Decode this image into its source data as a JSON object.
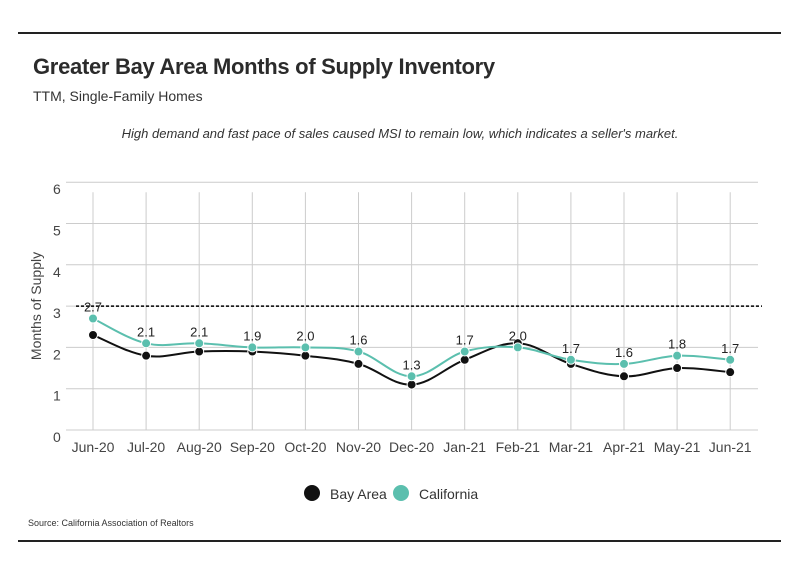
{
  "header": {
    "title": "Greater Bay Area Months of Supply Inventory",
    "subtitle": "TTM, Single-Family Homes"
  },
  "annotation": "High demand and fast pace of sales caused MSI to remain low, which indicates a seller's market.",
  "source": "Source:  California Association of Realtors",
  "colors": {
    "bay_area": "#111111",
    "california": "#5bbfae",
    "grid": "#cccccc",
    "reference_line": "#000000"
  },
  "chart_data": {
    "type": "line",
    "ylabel": "Months of Supply",
    "ylim": [
      0,
      6
    ],
    "yticks": [
      0,
      1,
      2,
      3,
      4,
      5,
      6
    ],
    "grid": true,
    "legend_position": "bottom-center",
    "reference_line": {
      "y": 3,
      "style": "dashed"
    },
    "categories": [
      "Jun-20",
      "Jul-20",
      "Aug-20",
      "Sep-20",
      "Oct-20",
      "Nov-20",
      "Dec-20",
      "Jan-21",
      "Feb-21",
      "Mar-21",
      "Apr-21",
      "May-21",
      "Jun-21"
    ],
    "series": [
      {
        "name": "Bay Area",
        "color": "#111111",
        "values": [
          2.3,
          1.8,
          1.9,
          1.9,
          1.8,
          1.6,
          1.1,
          1.7,
          2.1,
          1.6,
          1.3,
          1.5,
          1.4
        ]
      },
      {
        "name": "California",
        "color": "#5bbfae",
        "values": [
          2.7,
          2.1,
          2.1,
          2.0,
          2.0,
          1.9,
          1.3,
          1.9,
          2.0,
          1.7,
          1.6,
          1.8,
          1.7
        ]
      }
    ],
    "data_labels": [
      "2.7",
      "2.1",
      "2.1",
      "1.9",
      "2.0",
      "1.6",
      "1.3",
      "1.7",
      "2.0",
      "1.7",
      "1.6",
      "1.8",
      "1.7"
    ]
  }
}
